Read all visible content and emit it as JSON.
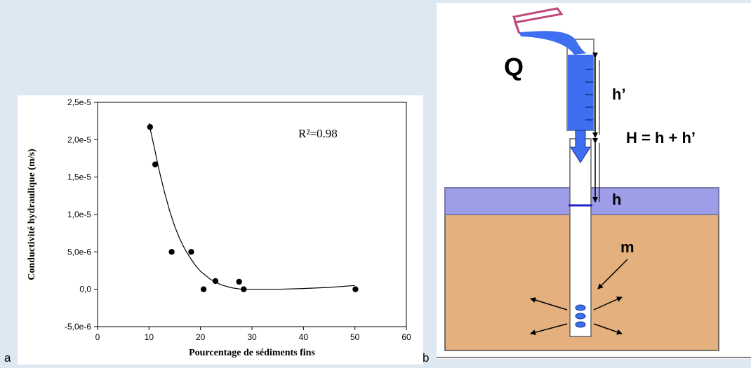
{
  "panel_a": {
    "letter": "a"
  },
  "panel_b": {
    "letter": "b",
    "labels": {
      "q": "Q",
      "h_prime": "h’",
      "h_total": "H = h + h’",
      "h": "h",
      "m": "m"
    }
  },
  "colors": {
    "water": "#3d6ff0",
    "soil": "#e3b07e",
    "surface_water": "#9e9ee8",
    "slab_edge": "#7a7aa8",
    "pour_outline": "#c0497a"
  },
  "chart_data": {
    "type": "scatter",
    "title": "",
    "xlabel": "Pourcentage de sédiments fins",
    "ylabel": "Conductivité hydraulique (m/s)",
    "annotation": "R²=0.98",
    "xlim": [
      0,
      60
    ],
    "ylim": [
      -5e-06,
      2.5e-05
    ],
    "x_ticks": [
      "0",
      "10",
      "20",
      "30",
      "40",
      "50",
      "60"
    ],
    "y_ticks": [
      "-5,0e-6",
      "0,0",
      "5,0e-6",
      "1,0e-5",
      "1,5e-5",
      "2,0e-5",
      "2,5e-5"
    ],
    "grid": false,
    "points": [
      {
        "x": 10.2,
        "y": 2.17e-05
      },
      {
        "x": 11.2,
        "y": 1.67e-05
      },
      {
        "x": 14.4,
        "y": 5e-06
      },
      {
        "x": 18.2,
        "y": 5e-06
      },
      {
        "x": 20.6,
        "y": 0.0
      },
      {
        "x": 22.9,
        "y": 1.1e-06
      },
      {
        "x": 27.5,
        "y": 1e-06
      },
      {
        "x": 28.4,
        "y": 0.0
      },
      {
        "x": 50.1,
        "y": 0.0
      }
    ],
    "fit_curve": [
      {
        "x": 10,
        "y": 2.22e-05
      },
      {
        "x": 11,
        "y": 1.9e-05
      },
      {
        "x": 12,
        "y": 1.58e-05
      },
      {
        "x": 13,
        "y": 1.3e-05
      },
      {
        "x": 14,
        "y": 1.05e-05
      },
      {
        "x": 15,
        "y": 8.4e-06
      },
      {
        "x": 16,
        "y": 6.7e-06
      },
      {
        "x": 17,
        "y": 5.3e-06
      },
      {
        "x": 18,
        "y": 4.2e-06
      },
      {
        "x": 19,
        "y": 3.2e-06
      },
      {
        "x": 20,
        "y": 2.4e-06
      },
      {
        "x": 22,
        "y": 1.3e-06
      },
      {
        "x": 24,
        "y": 6e-07
      },
      {
        "x": 26,
        "y": 2e-07
      },
      {
        "x": 28,
        "y": 0.0
      },
      {
        "x": 30,
        "y": 0.0
      },
      {
        "x": 35,
        "y": 0.0
      },
      {
        "x": 40,
        "y": 1e-07
      },
      {
        "x": 45,
        "y": 2.5e-07
      },
      {
        "x": 50,
        "y": 5e-07
      }
    ]
  }
}
